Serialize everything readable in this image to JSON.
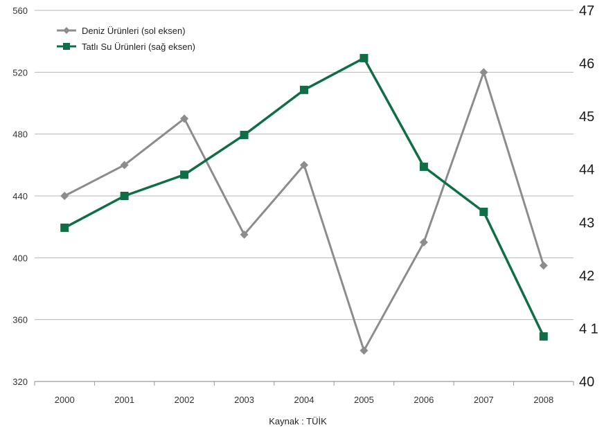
{
  "chart_data": {
    "type": "line",
    "title": "",
    "xlabel": "",
    "ylabel": "",
    "categories": [
      "2000",
      "2001",
      "2002",
      "2003",
      "2004",
      "2005",
      "2006",
      "2007",
      "2008"
    ],
    "y_left": {
      "lim": [
        320,
        560
      ],
      "ticks": [
        320,
        360,
        400,
        440,
        480,
        520,
        560
      ]
    },
    "y_right": {
      "lim": [
        40,
        47
      ],
      "ticks": [
        40,
        41,
        42,
        43,
        44,
        45,
        46,
        47
      ],
      "tick_labels": [
        "40",
        "4 1",
        "42",
        "43",
        "44",
        "45",
        "46",
        "47"
      ]
    },
    "grid": true,
    "legend_position": "top-left",
    "series": [
      {
        "name": "Deniz Ürünleri (sol eksen)",
        "axis": "left",
        "marker": "diamond",
        "color": "#8c8c8c",
        "values": [
          440,
          460,
          490,
          415,
          460,
          340,
          410,
          520,
          395
        ]
      },
      {
        "name": "Tatlı Su Ürünleri (sağ eksen)",
        "axis": "right",
        "marker": "square",
        "color": "#0f6e46",
        "values": [
          42.9,
          43.5,
          43.9,
          44.65,
          45.5,
          46.1,
          44.05,
          43.2,
          40.85
        ]
      }
    ]
  },
  "source": "Kaynak : TÜİK"
}
